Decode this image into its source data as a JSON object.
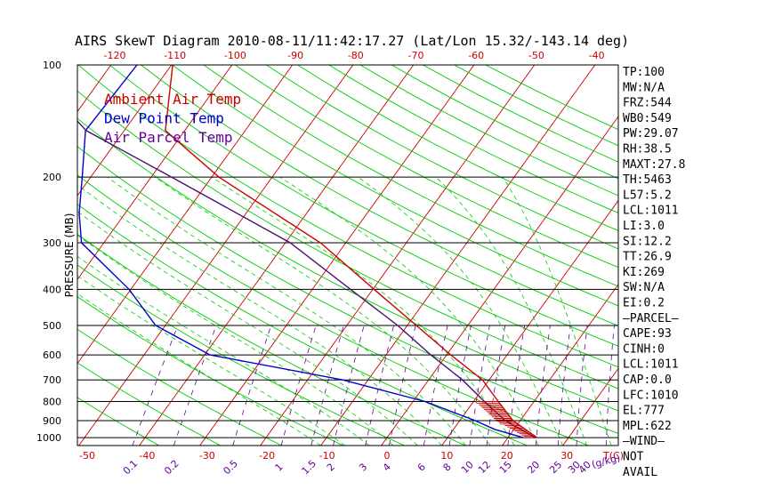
{
  "title": "AIRS SkewT Diagram 2010-08-11/11:42:17.27 (Lat/Lon 15.32/-143.14 deg)",
  "colors": {
    "temp": "#cc0000",
    "dewpoint": "#0000cc",
    "parcel": "#4b0f6e",
    "isotherm": "#cc0000",
    "dry_adiabat": "#00cc00",
    "moist_adiabat": "#00cc00",
    "mixing_ratio": "#660099",
    "isobar": "#000000"
  },
  "legend": [
    {
      "label": "Ambient Air Temp",
      "color": "#cc0000"
    },
    {
      "label": "Dew Point Temp",
      "color": "#0000cc"
    },
    {
      "label": "Air Parcel Temp",
      "color": "#660099"
    }
  ],
  "chart_data": {
    "type": "line",
    "ylabel": "PRESSURE (MB)",
    "y_scale": "log",
    "pressure_ticks": [
      100,
      200,
      300,
      400,
      500,
      600,
      700,
      800,
      900,
      1000
    ],
    "top_temp_ticks": [
      -120,
      -110,
      -100,
      -90,
      -80,
      -70,
      -60,
      -50,
      -40
    ],
    "bottom_temp_ticks": [
      -50,
      -40,
      -30,
      -20,
      -10,
      0,
      10,
      20,
      30
    ],
    "bottom_axis_unit": "T(C)",
    "mixing_ratio_ticks": [
      "0.1",
      "0.2",
      "0.5",
      "1",
      "1.5",
      "2",
      "3",
      "4",
      "6",
      "8",
      "10",
      "12",
      "15",
      "20",
      "25",
      "30",
      "40"
    ],
    "mixing_ratio_unit": "(g/kg)",
    "series": [
      {
        "name": "Ambient Air Temp",
        "points": [
          [
            100,
            -79.8
          ],
          [
            150,
            -73.2
          ],
          [
            200,
            -58.8
          ],
          [
            300,
            -34.2
          ],
          [
            400,
            -19.8
          ],
          [
            500,
            -8.5
          ],
          [
            600,
            0.7
          ],
          [
            700,
            8.9
          ],
          [
            800,
            14.1
          ],
          [
            900,
            18.8
          ],
          [
            1000,
            24.8
          ]
        ]
      },
      {
        "name": "Dew Point Temp",
        "points": [
          [
            100,
            -85.7
          ],
          [
            150,
            -86.4
          ],
          [
            200,
            -81.4
          ],
          [
            250,
            -77.6
          ],
          [
            300,
            -73.7
          ],
          [
            400,
            -60.3
          ],
          [
            500,
            -51.6
          ],
          [
            600,
            -39.1
          ],
          [
            700,
            -14.2
          ],
          [
            800,
            2.0
          ],
          [
            900,
            12.5
          ],
          [
            950,
            16.8
          ],
          [
            1000,
            22.5
          ]
        ]
      },
      {
        "name": "Air Parcel Temp",
        "points": [
          [
            100,
            -104.2
          ],
          [
            150,
            -86.3
          ],
          [
            200,
            -66.6
          ],
          [
            300,
            -39.2
          ],
          [
            400,
            -23.7
          ],
          [
            500,
            -11.6
          ],
          [
            600,
            -2.6
          ],
          [
            700,
            5.6
          ],
          [
            800,
            11.8
          ],
          [
            900,
            17.5
          ],
          [
            1000,
            24.5
          ]
        ]
      }
    ]
  },
  "stats": [
    "TP:100",
    "MW:N/A",
    "FRZ:544",
    "WB0:549",
    "PW:29.07",
    "RH:38.5",
    "MAXT:27.8",
    "TH:5463",
    "L57:5.2",
    "LCL:1011",
    "LI:3.0",
    "SI:12.2",
    "TT:26.9",
    "KI:269",
    "SW:N/A",
    "EI:0.2",
    "—PARCEL—",
    "CAPE:93",
    "CINH:0",
    "LCL:1011",
    "CAP:0.0",
    "LFC:1010",
    "EL:777",
    "MPL:622",
    "—WIND—",
    "NOT",
    "AVAIL"
  ]
}
